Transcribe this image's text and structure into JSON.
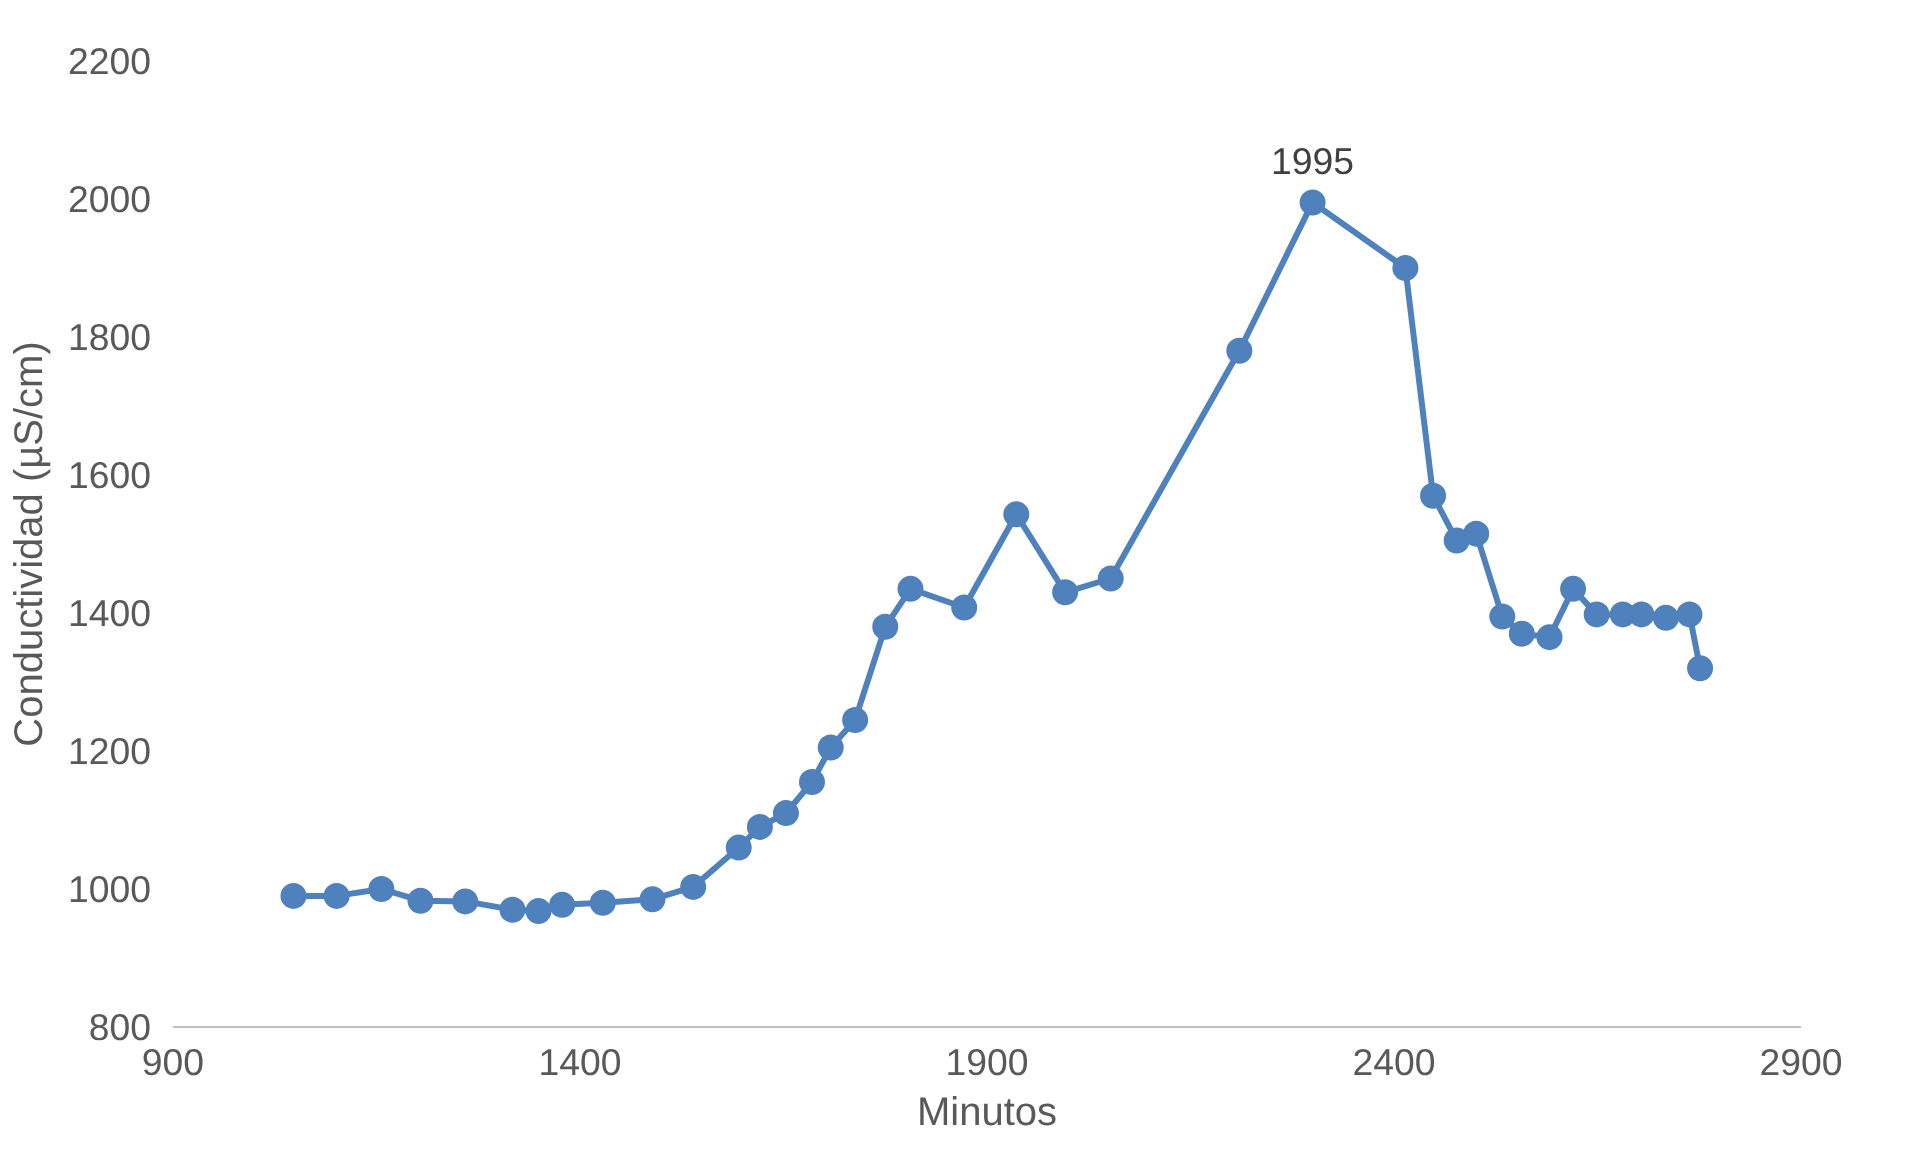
{
  "chart_data": {
    "type": "line",
    "xlabel": "Minutos",
    "ylabel": "Conductividad (µS/cm)",
    "x": [
      1048,
      1101,
      1156,
      1204,
      1259,
      1317,
      1349,
      1378,
      1428,
      1489,
      1539,
      1595,
      1621,
      1653,
      1685,
      1708,
      1738,
      1775,
      1806,
      1872,
      1936,
      1996,
      2052,
      2210,
      2300,
      2414,
      2448,
      2477,
      2501,
      2533,
      2557,
      2591,
      2620,
      2649,
      2681,
      2704,
      2734,
      2763,
      2776
    ],
    "series": [
      {
        "color": "#4f81bd",
        "values": [
          990,
          990,
          1000,
          983,
          982,
          970,
          968,
          977,
          980,
          985,
          1003,
          1060,
          1090,
          1110,
          1155,
          1205,
          1245,
          1380,
          1435,
          1408,
          1543,
          1430,
          1450,
          1780,
          1995,
          1900,
          1570,
          1505,
          1515,
          1395,
          1370,
          1365,
          1435,
          1398,
          1398,
          1398,
          1393,
          1398,
          1320
        ]
      }
    ],
    "annotations": [
      {
        "text": "1995",
        "x": 2300,
        "y": 1995
      }
    ],
    "xlim": [
      900,
      2900
    ],
    "xticks": [
      900,
      1400,
      1900,
      2400,
      2900
    ],
    "ylim": [
      800,
      2200
    ],
    "yticks": [
      800,
      1000,
      1200,
      1400,
      1600,
      1800,
      2000,
      2200
    ],
    "grid": false,
    "marker": "circle",
    "line_style": "solid"
  }
}
